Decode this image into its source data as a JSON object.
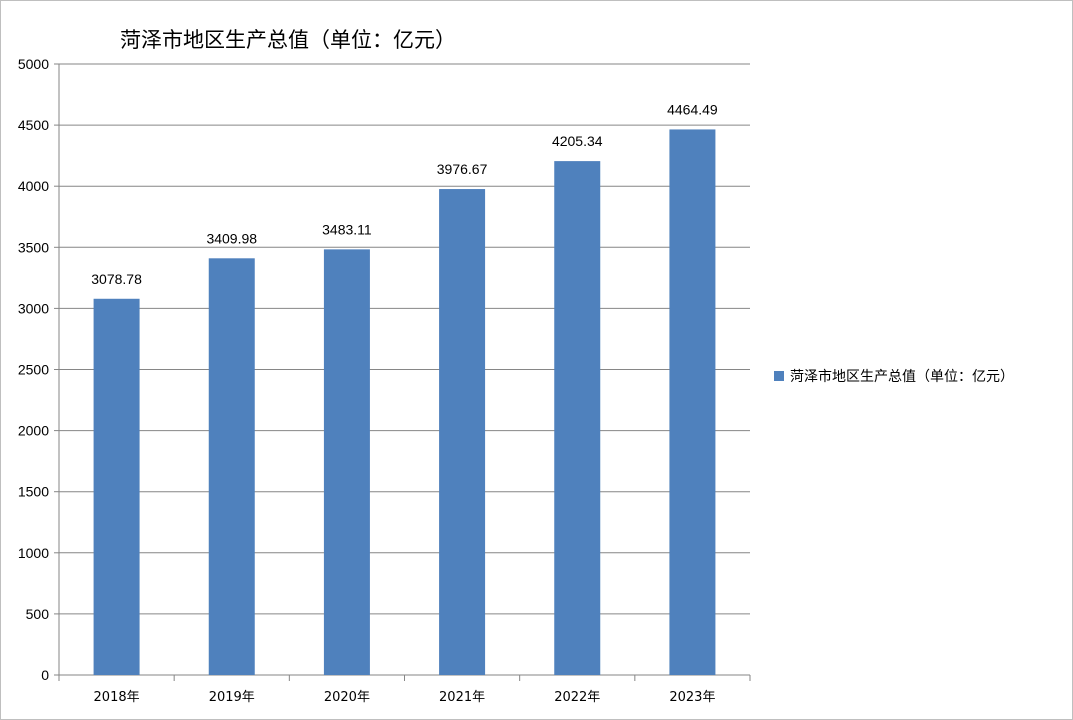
{
  "chart_data": {
    "type": "bar",
    "title": "菏泽市地区生产总值（单位：亿元）",
    "categories": [
      "2018年",
      "2019年",
      "2020年",
      "2021年",
      "2022年",
      "2023年"
    ],
    "series": [
      {
        "name": "菏泽市地区生产总值（单位：亿元）",
        "values": [
          3078.78,
          3409.98,
          3483.11,
          3976.67,
          4205.34,
          4464.49
        ],
        "data_labels": [
          "3078.78",
          "3409.98",
          "3483.11",
          "3976.67",
          "4205.34",
          "4464.49"
        ],
        "color": "#4f81bd"
      }
    ],
    "ylim": [
      0,
      5000
    ],
    "yticks": [
      0,
      500,
      1000,
      1500,
      2000,
      2500,
      3000,
      3500,
      4000,
      4500,
      5000
    ],
    "grid": true,
    "legend_position": "right",
    "gridline_color": "#868686"
  }
}
